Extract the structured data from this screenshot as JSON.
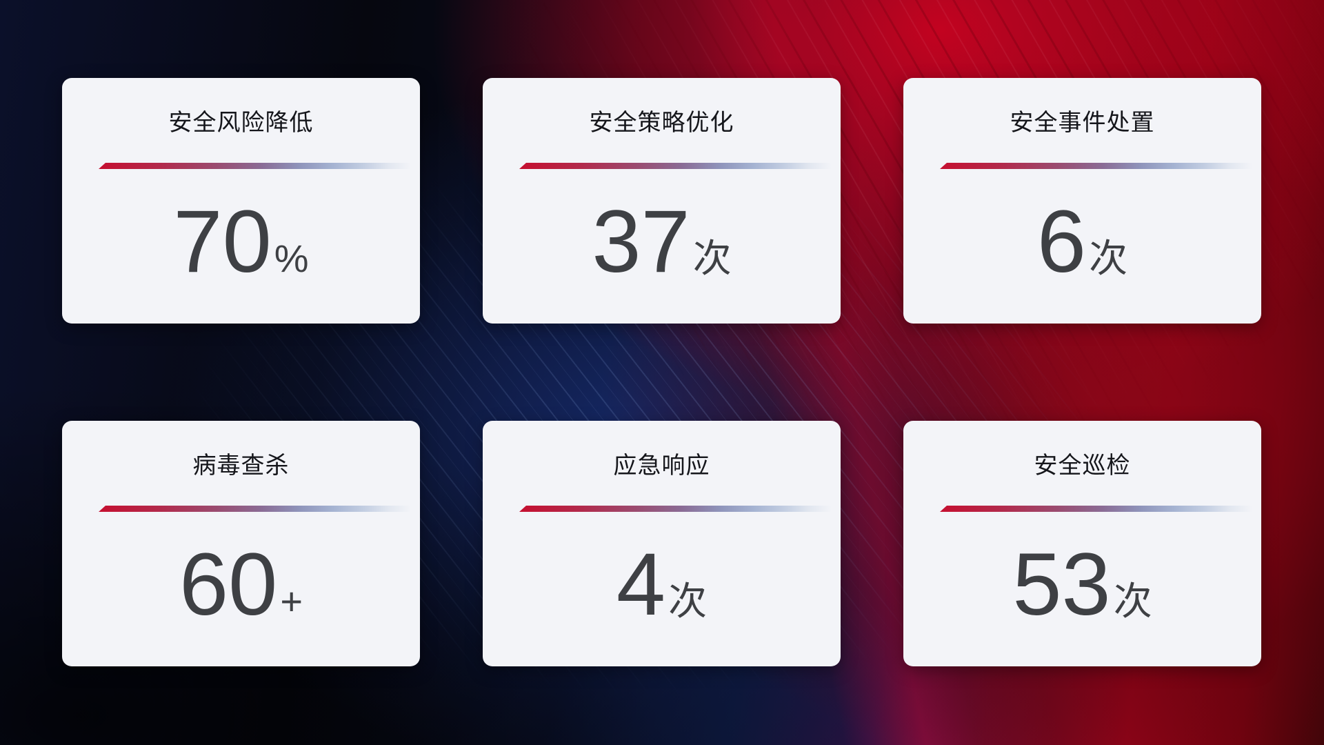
{
  "cards": [
    {
      "title": "安全风险降低",
      "value": "70",
      "unit": "%"
    },
    {
      "title": "安全策略优化",
      "value": "37",
      "unit": "次"
    },
    {
      "title": "安全事件处置",
      "value": "6",
      "unit": "次"
    },
    {
      "title": "病毒查杀",
      "value": "60",
      "unit": "+"
    },
    {
      "title": "应急响应",
      "value": "4",
      "unit": "次"
    },
    {
      "title": "安全巡检",
      "value": "53",
      "unit": "次"
    }
  ],
  "colors": {
    "card-bg": "#f3f4f8",
    "title-text": "#15161b",
    "value-text": "#3e4044",
    "divider-red": "#c50f30",
    "divider-blue": "#a5b3d2",
    "bg-navy": "#0c1637",
    "bg-red": "#8e0418"
  }
}
